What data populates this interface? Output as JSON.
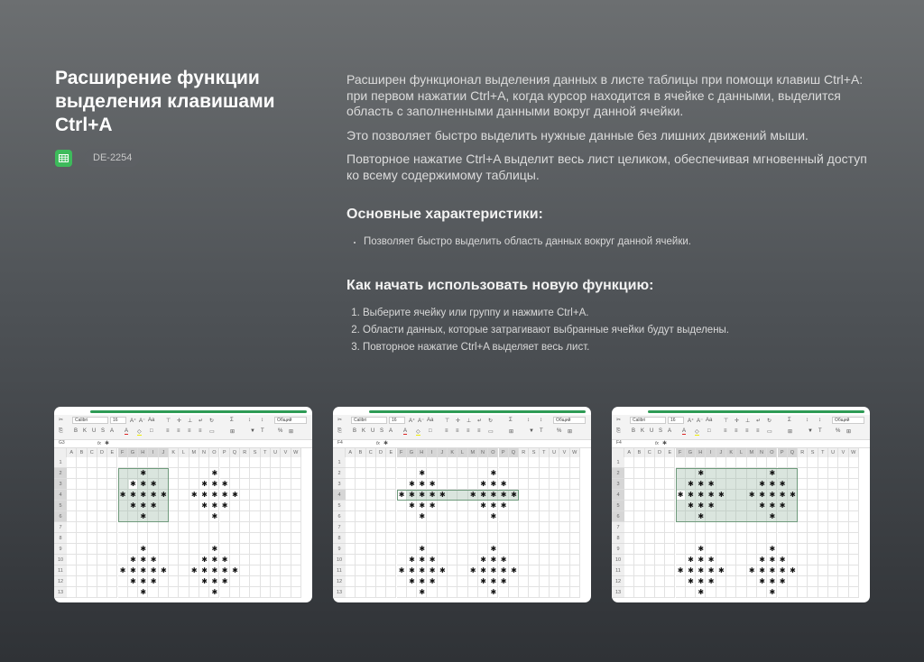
{
  "title": "Расширение функции выделения клавишами Ctrl+A",
  "app_icon": "spreadsheet-icon",
  "tag": "DE-2254",
  "description": [
    "Расширен функционал выделения данных в листе таблицы при помощи клавиш Ctrl+A: при первом нажатии Ctrl+A, когда курсор находится в ячейке с данными, выделится область с заполненными данными вокруг данной ячейки.",
    "Это позволяет быстро выделить нужные данные без лишних движений мыши.",
    "Повторное нажатие Ctrl+A выделит весь лист целиком, обеспечивая мгновенный доступ ко всему содержимому таблицы."
  ],
  "features_heading": "Основные характеристики:",
  "features": [
    "Позволяет быстро выделить область данных вокруг данной ячейки."
  ],
  "howto_heading": "Как начать использовать новую функцию:",
  "steps": [
    "Выберите ячейку или группу и нажмите Ctrl+A.",
    "Области данных, которые затрагивают выбранные ячейки будут выделены.",
    "Повторное нажатие Ctrl+A выделяет весь лист."
  ],
  "colors": {
    "accent": "#3dbb5b",
    "selection_border": "#6f9a7c"
  },
  "sheet": {
    "font": "Calibri",
    "font_size": "16",
    "number_format": "Общий",
    "fx": "fx",
    "cell_value": "✱",
    "columns": [
      "A",
      "B",
      "C",
      "D",
      "E",
      "F",
      "G",
      "H",
      "I",
      "J",
      "K",
      "L",
      "M",
      "N",
      "O",
      "P",
      "Q",
      "R",
      "S",
      "T",
      "U",
      "V",
      "W"
    ],
    "rows": [
      "1",
      "2",
      "3",
      "4",
      "5",
      "6",
      "7",
      "8",
      "9",
      "10",
      "11",
      "12",
      "13"
    ],
    "filled_cells": [
      "H2",
      "G3",
      "H3",
      "I3",
      "F4",
      "G4",
      "H4",
      "I4",
      "J4",
      "G5",
      "H5",
      "I5",
      "H6",
      "O2",
      "N3",
      "O3",
      "P3",
      "M4",
      "N4",
      "O4",
      "P4",
      "Q4",
      "N5",
      "O5",
      "P5",
      "O6",
      "H9",
      "G10",
      "H10",
      "I10",
      "F11",
      "G11",
      "H11",
      "I11",
      "J11",
      "G12",
      "H12",
      "I12",
      "H13",
      "O9",
      "N10",
      "O10",
      "P10",
      "M11",
      "N11",
      "O11",
      "P11",
      "Q11",
      "N12",
      "O12",
      "P12",
      "O13"
    ]
  },
  "panels": [
    {
      "active_cell": "G3",
      "selection": "F2:J6"
    },
    {
      "active_cell": "F4",
      "selection": "F4:Q4"
    },
    {
      "active_cell": "F4",
      "selection": "F2:Q6"
    }
  ]
}
